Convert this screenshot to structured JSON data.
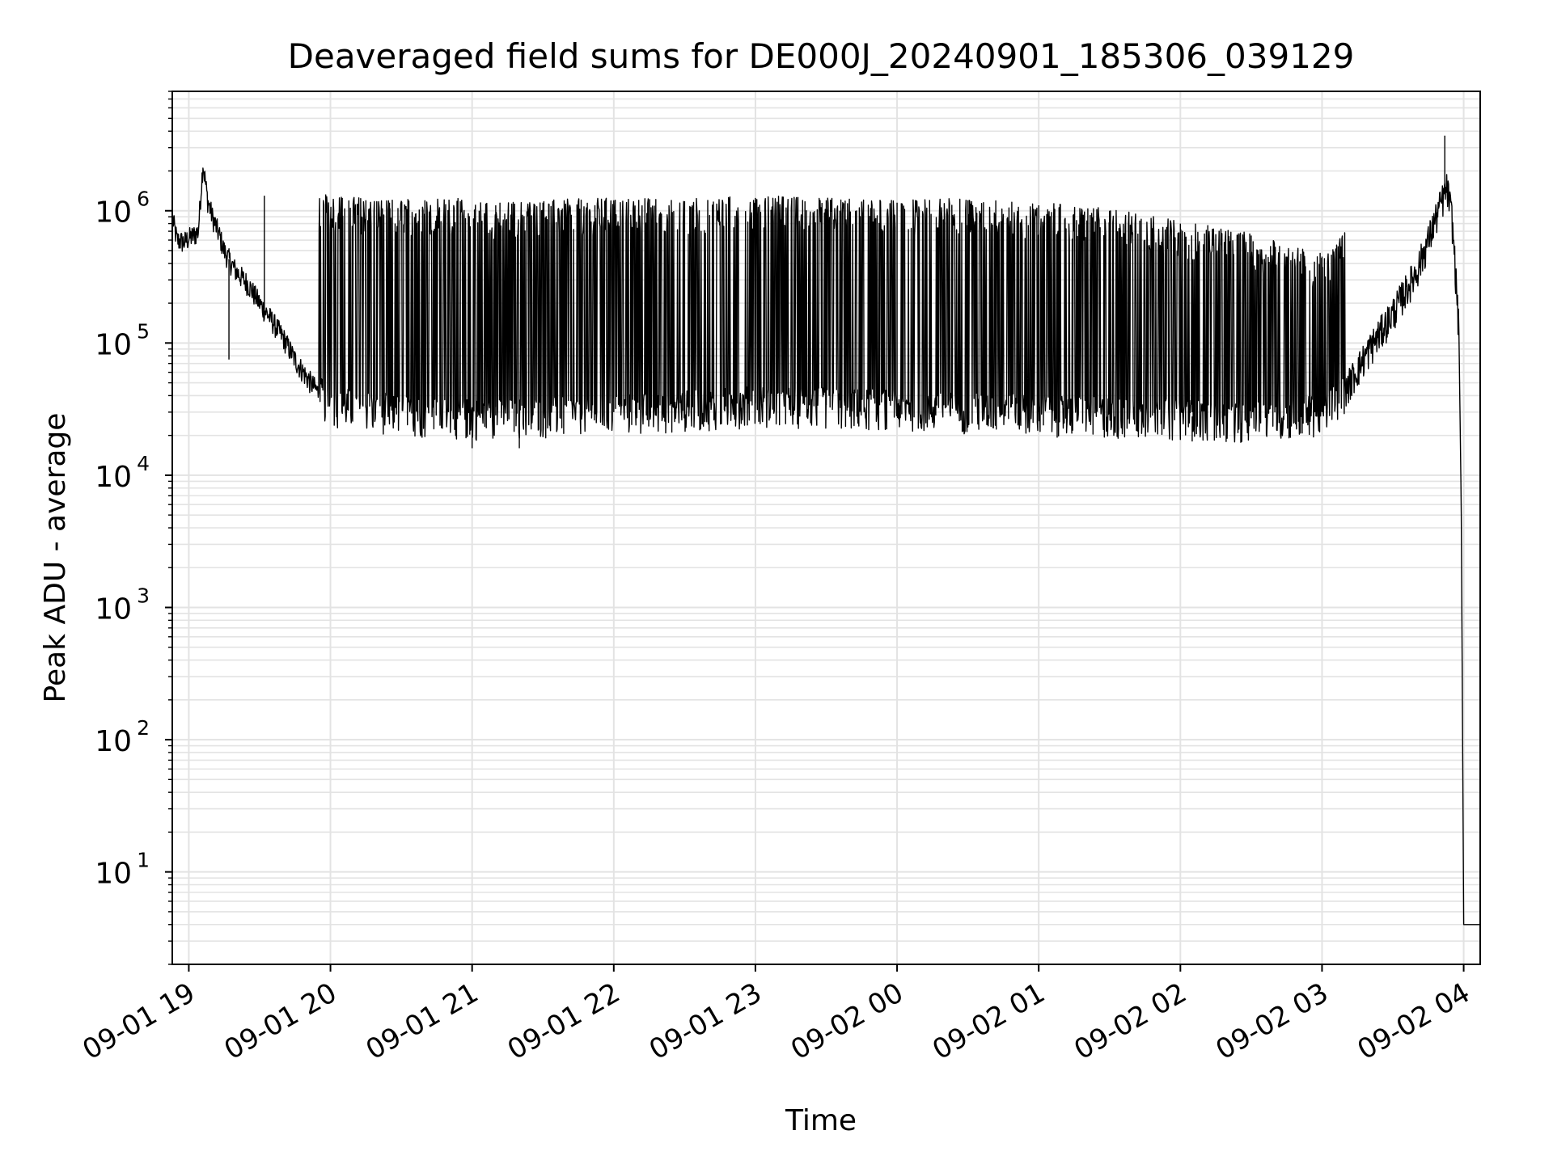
{
  "chart_data": {
    "type": "line",
    "title": "Deaveraged field sums for DE000J_20240901_185306_039129",
    "xlabel": "Time",
    "ylabel": "Peak ADU - average",
    "yscale": "log",
    "ylim": [
      2,
      8000000
    ],
    "xlim": [
      "2024-09-01 18:53",
      "2024-09-02 04:07"
    ],
    "grid": true,
    "line_color": "#000000",
    "x_ticks": [
      {
        "value": "2024-09-01 19:00",
        "label": "09-01 19"
      },
      {
        "value": "2024-09-01 20:00",
        "label": "09-01 20"
      },
      {
        "value": "2024-09-01 21:00",
        "label": "09-01 21"
      },
      {
        "value": "2024-09-01 22:00",
        "label": "09-01 22"
      },
      {
        "value": "2024-09-01 23:00",
        "label": "09-01 23"
      },
      {
        "value": "2024-09-02 00:00",
        "label": "09-02 00"
      },
      {
        "value": "2024-09-02 01:00",
        "label": "09-02 01"
      },
      {
        "value": "2024-09-02 02:00",
        "label": "09-02 02"
      },
      {
        "value": "2024-09-02 03:00",
        "label": "09-02 03"
      },
      {
        "value": "2024-09-02 04:00",
        "label": "09-02 04"
      }
    ],
    "y_ticks": [
      {
        "value": 10,
        "base": "10",
        "exp": "1"
      },
      {
        "value": 100,
        "base": "10",
        "exp": "2"
      },
      {
        "value": 1000,
        "base": "10",
        "exp": "3"
      },
      {
        "value": 10000,
        "base": "10",
        "exp": "4"
      },
      {
        "value": 100000,
        "base": "10",
        "exp": "5"
      },
      {
        "value": 1000000,
        "base": "10",
        "exp": "6"
      }
    ],
    "series": [
      {
        "points": [
          [
            "2024-09-01 18:53",
            900000
          ],
          [
            "2024-09-01 18:55",
            600000
          ],
          [
            "2024-09-01 18:58",
            580000
          ],
          [
            "2024-09-01 19:00",
            620000
          ],
          [
            "2024-09-01 19:02",
            650000
          ],
          [
            "2024-09-01 19:04",
            700000
          ],
          [
            "2024-09-01 19:06",
            2300000
          ],
          [
            "2024-09-01 19:08",
            1200000
          ],
          [
            "2024-09-01 19:10",
            900000
          ],
          [
            "2024-09-01 19:13",
            650000
          ],
          [
            "2024-09-01 19:15",
            500000
          ],
          [
            "2024-09-01 19:18",
            400000
          ],
          [
            "2024-09-01 19:20",
            350000
          ],
          [
            "2024-09-01 19:25",
            280000
          ],
          [
            "2024-09-01 19:30",
            200000
          ],
          [
            "2024-09-01 19:35",
            150000
          ],
          [
            "2024-09-01 19:40",
            110000
          ],
          [
            "2024-09-01 19:45",
            75000
          ],
          [
            "2024-09-01 19:50",
            55000
          ],
          [
            "2024-09-01 19:55",
            42000
          ],
          [
            "2024-09-01 20:00",
            35000
          ],
          [
            "2024-09-01 20:30",
            30000
          ],
          [
            "2024-09-01 21:00",
            28000
          ],
          [
            "2024-09-01 22:00",
            30000
          ],
          [
            "2024-09-01 23:00",
            35000
          ],
          [
            "2024-09-02 00:00",
            33000
          ],
          [
            "2024-09-02 01:00",
            30000
          ],
          [
            "2024-09-02 02:00",
            28000
          ],
          [
            "2024-09-02 02:30",
            27000
          ],
          [
            "2024-09-02 03:00",
            30000
          ],
          [
            "2024-09-02 03:10",
            45000
          ],
          [
            "2024-09-02 03:20",
            90000
          ],
          [
            "2024-09-02 03:30",
            170000
          ],
          [
            "2024-09-02 03:40",
            350000
          ],
          [
            "2024-09-02 03:45",
            600000
          ],
          [
            "2024-09-02 03:50",
            1100000
          ],
          [
            "2024-09-02 03:53",
            1500000
          ],
          [
            "2024-09-02 03:55",
            900000
          ],
          [
            "2024-09-02 03:56",
            500000
          ],
          [
            "2024-09-02 03:57",
            250000
          ],
          [
            "2024-09-02 03:58",
            120000
          ],
          [
            "2024-09-02 03:59",
            5000
          ],
          [
            "2024-09-02 04:00",
            4
          ],
          [
            "2024-09-02 04:07",
            4
          ]
        ],
        "spikes_high": [
          [
            "2024-09-01 19:06",
            2300000
          ],
          [
            "2024-09-01 19:32",
            1300000
          ],
          [
            "2024-09-01 20:05",
            1250000
          ],
          [
            "2024-09-01 20:15",
            1200000
          ],
          [
            "2024-09-01 20:25",
            1150000
          ],
          [
            "2024-09-01 20:40",
            1200000
          ],
          [
            "2024-09-01 20:55",
            1180000
          ],
          [
            "2024-09-01 21:10",
            1100000
          ],
          [
            "2024-09-01 21:30",
            1150000
          ],
          [
            "2024-09-01 22:00",
            1200000
          ],
          [
            "2024-09-01 22:30",
            1180000
          ],
          [
            "2024-09-01 23:00",
            1250000
          ],
          [
            "2024-09-01 23:30",
            1200000
          ],
          [
            "2024-09-02 00:00",
            1150000
          ],
          [
            "2024-09-02 00:30",
            1200000
          ],
          [
            "2024-09-02 01:00",
            1100000
          ],
          [
            "2024-09-02 01:30",
            1000000
          ],
          [
            "2024-09-02 02:00",
            800000
          ],
          [
            "2024-09-02 02:30",
            650000
          ],
          [
            "2024-09-02 03:00",
            450000
          ],
          [
            "2024-09-02 03:52",
            3700000
          ]
        ],
        "dips_low": [
          [
            "2024-09-01 19:17",
            75000
          ],
          [
            "2024-09-01 21:00",
            16000
          ],
          [
            "2024-09-01 21:20",
            16000
          ],
          [
            "2024-09-02 02:05",
            18000
          ]
        ]
      }
    ]
  }
}
